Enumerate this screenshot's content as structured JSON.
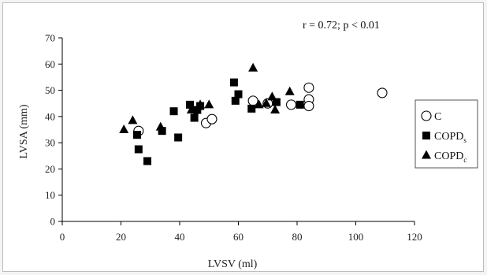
{
  "chart_data": {
    "type": "scatter",
    "title": "",
    "xlabel": "LVSV (ml)",
    "ylabel": "LVSA (mm)",
    "xlim": [
      0,
      120
    ],
    "ylim": [
      0,
      70
    ],
    "xticks": [
      0,
      20,
      40,
      60,
      80,
      100,
      120
    ],
    "yticks": [
      0,
      10,
      20,
      30,
      40,
      50,
      60,
      70
    ],
    "annotation": "r = 0.72; p < 0.01",
    "grid": false,
    "legend_position": "right",
    "series": [
      {
        "name": "C",
        "marker": "open-circle",
        "color": "#000000",
        "points": [
          [
            26,
            34.5
          ],
          [
            49,
            37.5
          ],
          [
            51,
            39
          ],
          [
            65,
            46
          ],
          [
            70,
            45
          ],
          [
            78,
            44.5
          ],
          [
            84,
            46.5
          ],
          [
            84,
            44
          ],
          [
            84,
            51
          ],
          [
            109,
            49
          ]
        ]
      },
      {
        "name": "COPD",
        "subscript": "s",
        "marker": "filled-square",
        "color": "#000000",
        "points": [
          [
            25.5,
            33
          ],
          [
            26,
            27.5
          ],
          [
            29,
            23
          ],
          [
            34,
            34.5
          ],
          [
            38,
            42
          ],
          [
            39.5,
            32
          ],
          [
            43.5,
            44.5
          ],
          [
            45,
            39.5
          ],
          [
            46,
            42.5
          ],
          [
            47,
            44
          ],
          [
            58.5,
            53
          ],
          [
            59,
            46
          ],
          [
            60,
            48.5
          ],
          [
            64.5,
            43
          ],
          [
            73,
            45.5
          ],
          [
            81,
            44.5
          ]
        ]
      },
      {
        "name": "COPD",
        "subscript": "c",
        "marker": "filled-triangle",
        "color": "#000000",
        "points": [
          [
            21,
            35
          ],
          [
            24,
            38.5
          ],
          [
            33.5,
            36
          ],
          [
            44,
            42.5
          ],
          [
            47,
            44.5
          ],
          [
            50,
            44.5
          ],
          [
            65,
            58.5
          ],
          [
            67,
            44.5
          ],
          [
            69.5,
            45
          ],
          [
            71.5,
            47.5
          ],
          [
            72.5,
            42.5
          ],
          [
            77.5,
            49.5
          ]
        ]
      }
    ]
  }
}
